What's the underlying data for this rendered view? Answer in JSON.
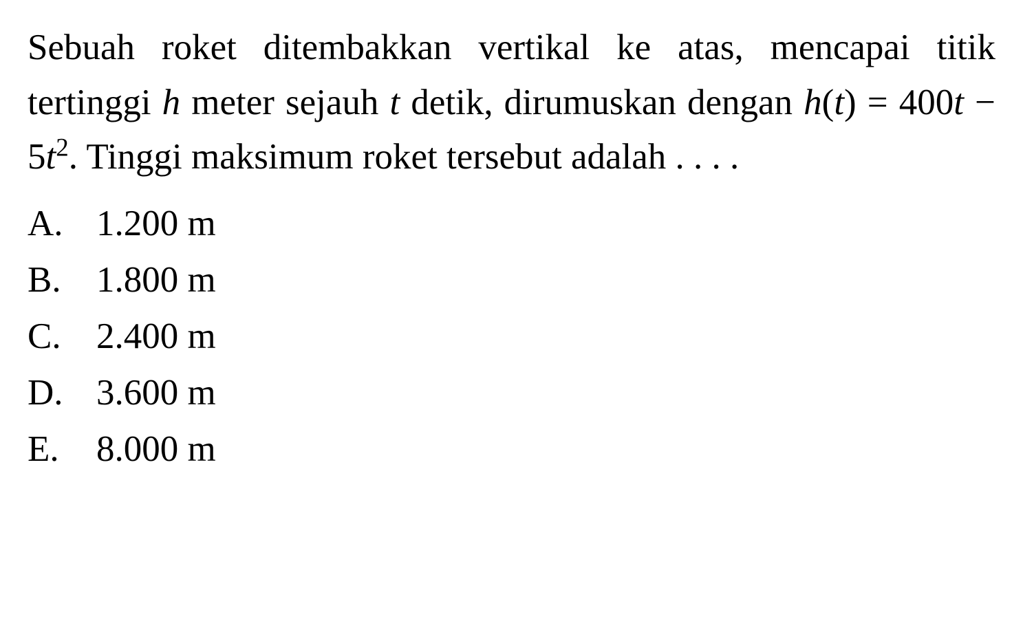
{
  "question": {
    "text_part1": "Sebuah roket ditembakkan vertikal ke atas, mencapai titik tertinggi ",
    "var_h": "h",
    "text_part2": " meter sejauh ",
    "var_t": "t",
    "text_part3": " detik, dirumuskan dengan ",
    "func_h": "h",
    "func_open": "(",
    "func_var": "t",
    "func_close": ") = 400",
    "term_t1": "t",
    "text_minus": " − 5",
    "term_t2": "t",
    "exponent": "2",
    "text_part4": ". Tinggi maksimum roket tersebut adalah . . . ."
  },
  "options": [
    {
      "letter": "A.",
      "value": "1.200 m"
    },
    {
      "letter": "B.",
      "value": "1.800 m"
    },
    {
      "letter": "C.",
      "value": "2.400 m"
    },
    {
      "letter": "D.",
      "value": "3.600 m"
    },
    {
      "letter": "E.",
      "value": "8.000 m"
    }
  ],
  "style": {
    "background_color": "#ffffff",
    "text_color": "#000000",
    "font_family": "Times New Roman",
    "question_fontsize": 53,
    "option_fontsize": 53,
    "line_height": 1.5
  }
}
